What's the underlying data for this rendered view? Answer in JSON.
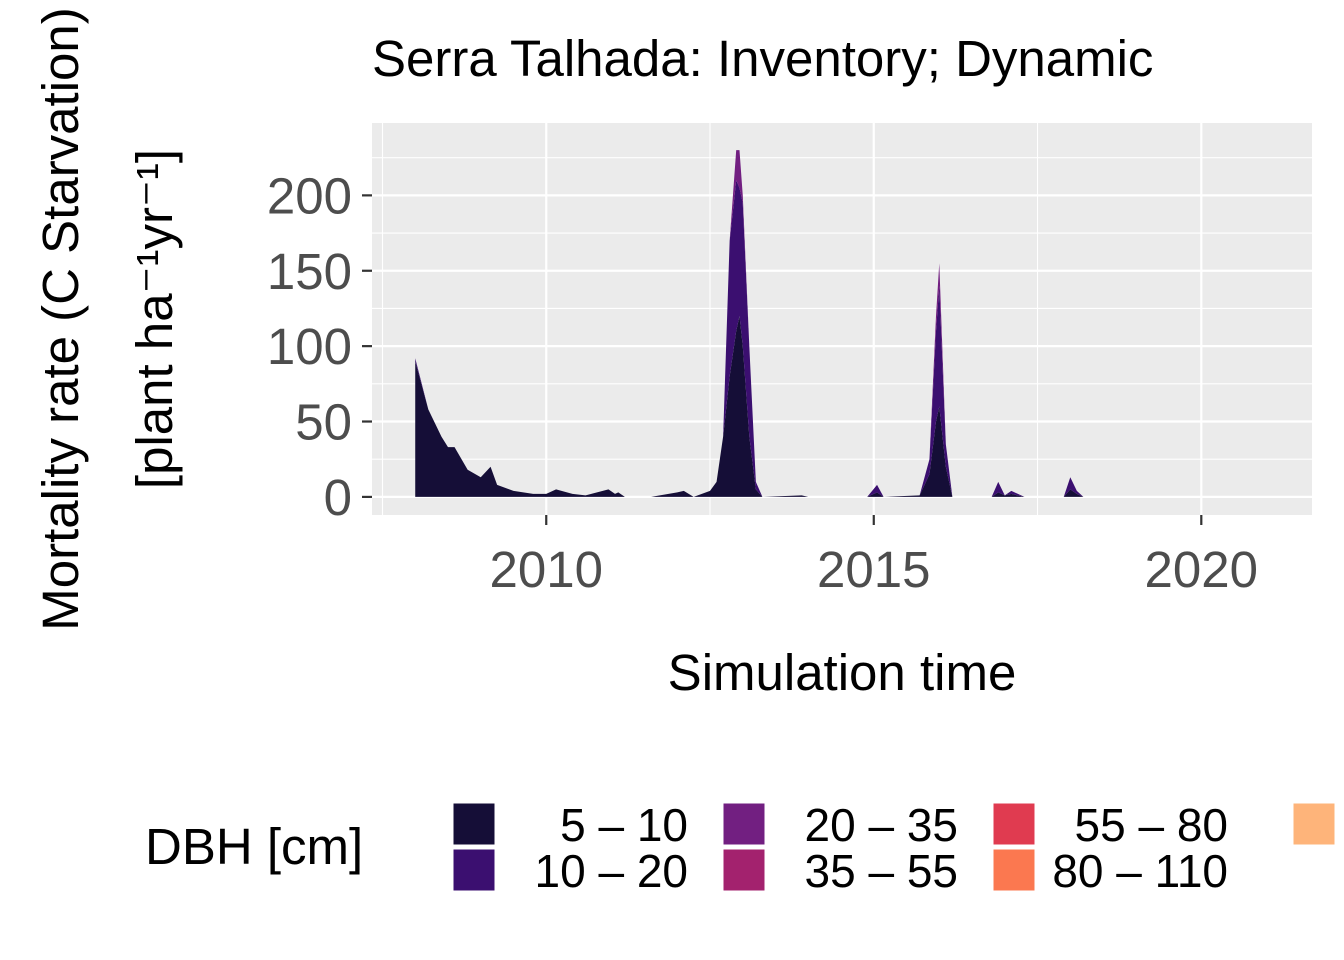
{
  "chart_data": {
    "type": "area",
    "stacked": true,
    "title": "Serra Talhada: Inventory; Dynamic",
    "xlabel": "Simulation time",
    "ylabel": [
      "Mortality rate (C Starvation)",
      "[plant ha⁻¹yr⁻¹]"
    ],
    "legend_title": "DBH [cm]",
    "legend_position": "bottom",
    "grid": true,
    "xlim": [
      2007.34,
      2021.69
    ],
    "ylim": [
      -12,
      248
    ],
    "xticks": [
      2010,
      2015,
      2020
    ],
    "yticks": [
      0,
      50,
      100,
      150,
      200
    ],
    "xminor": [
      2007.5,
      2012.5,
      2017.5
    ],
    "yminor": [
      25,
      75,
      125,
      175,
      225
    ],
    "x": [
      2008.0,
      2008.2,
      2008.4,
      2008.5,
      2008.6,
      2008.8,
      2009.0,
      2009.15,
      2009.25,
      2009.5,
      2009.8,
      2010.0,
      2010.15,
      2010.4,
      2010.6,
      2010.95,
      2011.05,
      2011.1,
      2011.2,
      2011.6,
      2012.0,
      2012.1,
      2012.25,
      2012.5,
      2012.6,
      2012.7,
      2012.8,
      2012.9,
      2012.95,
      2013.0,
      2013.1,
      2013.2,
      2013.3,
      2013.9,
      2014.0,
      2014.9,
      2015.05,
      2015.15,
      2015.7,
      2015.85,
      2015.95,
      2016.0,
      2016.1,
      2016.2,
      2016.8,
      2016.9,
      2017.0,
      2017.1,
      2017.3,
      2017.9,
      2018.0,
      2018.1,
      2018.2,
      2019.0,
      2021.0
    ],
    "series": [
      {
        "name": "5 – 10",
        "color": "#150e37",
        "values": [
          90,
          58,
          40,
          33,
          33,
          18,
          13,
          20,
          8,
          4,
          2,
          2,
          5,
          2,
          1,
          5,
          2,
          3,
          0,
          0,
          3,
          4,
          0,
          4,
          10,
          40,
          80,
          110,
          120,
          100,
          40,
          5,
          0,
          1,
          0,
          0,
          3,
          0,
          1,
          15,
          50,
          60,
          20,
          0,
          0,
          3,
          1,
          2,
          0,
          0,
          5,
          2,
          0,
          0,
          0
        ]
      },
      {
        "name": "10 – 20",
        "color": "#3b0f70",
        "values": [
          2,
          0,
          0,
          0,
          0,
          0,
          0,
          0,
          0,
          0,
          0,
          0,
          0,
          0,
          0,
          0,
          0,
          0,
          0,
          0,
          0,
          0,
          0,
          0,
          0,
          0,
          90,
          100,
          85,
          95,
          60,
          5,
          0,
          0,
          0,
          0,
          5,
          0,
          0,
          10,
          60,
          80,
          15,
          0,
          0,
          7,
          0,
          2,
          0,
          0,
          8,
          2,
          0,
          0,
          0
        ]
      },
      {
        "name": "20 – 35",
        "color": "#721f81",
        "values": [
          0,
          0,
          0,
          0,
          0,
          0,
          0,
          0,
          0,
          0,
          0,
          0,
          0,
          0,
          0,
          0,
          0,
          0,
          0,
          0,
          0,
          0,
          0,
          0,
          0,
          0,
          0,
          20,
          25,
          5,
          0,
          0,
          0,
          0,
          0,
          0,
          0,
          0,
          0,
          0,
          10,
          15,
          0,
          0,
          0,
          0,
          0,
          0,
          0,
          0,
          0,
          0,
          0,
          0,
          0
        ]
      },
      {
        "name": "35 – 55",
        "color": "#a3226e",
        "values": [
          0,
          0,
          0,
          0,
          0,
          0,
          0,
          0,
          0,
          0,
          0,
          0,
          0,
          0,
          0,
          0,
          0,
          0,
          0,
          0,
          0,
          0,
          0,
          0,
          0,
          0,
          0,
          0,
          0,
          0,
          0,
          0,
          0,
          0,
          0,
          0,
          0,
          0,
          0,
          0,
          0,
          0,
          0,
          0,
          0,
          0,
          0,
          0,
          0,
          0,
          0,
          0,
          0,
          0,
          0
        ]
      },
      {
        "name": "55 – 80",
        "color": "#e03b50",
        "values": [
          0,
          0,
          0,
          0,
          0,
          0,
          0,
          0,
          0,
          0,
          0,
          0,
          0,
          0,
          0,
          0,
          0,
          0,
          0,
          0,
          0,
          0,
          0,
          0,
          0,
          0,
          0,
          0,
          0,
          0,
          0,
          0,
          0,
          0,
          0,
          0,
          0,
          0,
          0,
          0,
          0,
          0,
          0,
          0,
          0,
          0,
          0,
          0,
          0,
          0,
          0,
          0,
          0,
          0,
          0
        ]
      },
      {
        "name": "80 – 110",
        "color": "#fb7850",
        "values": [
          0,
          0,
          0,
          0,
          0,
          0,
          0,
          0,
          0,
          0,
          0,
          0,
          0,
          0,
          0,
          0,
          0,
          0,
          0,
          0,
          0,
          0,
          0,
          0,
          0,
          0,
          0,
          0,
          0,
          0,
          0,
          0,
          0,
          0,
          0,
          0,
          0,
          0,
          0,
          0,
          0,
          0,
          0,
          0,
          0,
          0,
          0,
          0,
          0,
          0,
          0,
          0,
          0,
          0,
          0
        ]
      },
      {
        "name": null,
        "color": "#feb47a",
        "values": [
          0,
          0,
          0,
          0,
          0,
          0,
          0,
          0,
          0,
          0,
          0,
          0,
          0,
          0,
          0,
          0,
          0,
          0,
          0,
          0,
          0,
          0,
          0,
          0,
          0,
          0,
          0,
          0,
          0,
          0,
          0,
          0,
          0,
          0,
          0,
          0,
          0,
          0,
          0,
          0,
          0,
          0,
          0,
          0,
          0,
          0,
          0,
          0,
          0,
          0,
          0,
          0,
          0,
          0,
          0
        ]
      }
    ]
  }
}
